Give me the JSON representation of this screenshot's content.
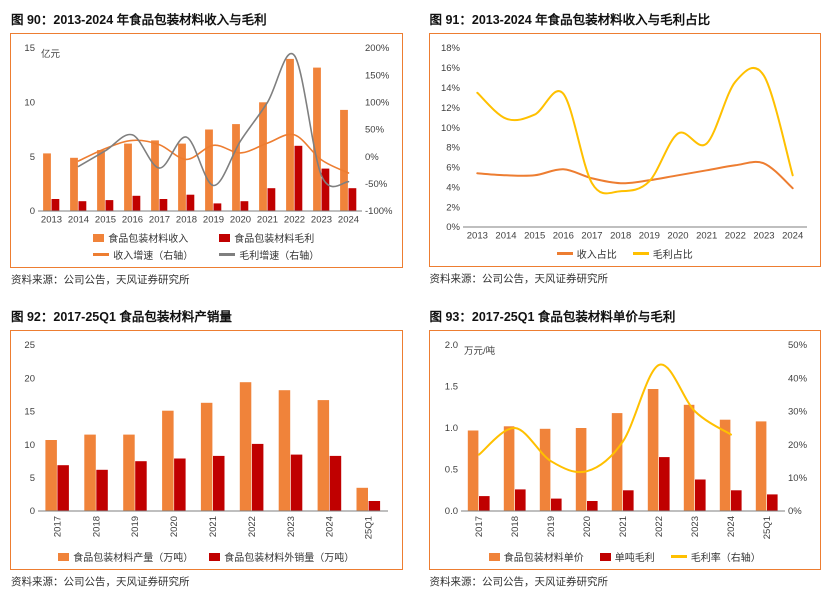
{
  "colors": {
    "bar_orange": "#F0833A",
    "bar_dark_red": "#C00000",
    "line_orange": "#ED7D31",
    "line_gray": "#7F7F7F",
    "line_yellow": "#FFC000",
    "panel_border": "#ED7D31"
  },
  "chart_data": [
    {
      "id": "fig90",
      "type": "bar+line",
      "title": "图 90：2013-2024 年食品包装材料收入与毛利",
      "source": "资料来源：公司公告，天风证券研究所",
      "unit_label": "亿元",
      "x_rotate": false,
      "legend_position": "bottom",
      "grid": false,
      "categories": [
        "2013",
        "2014",
        "2015",
        "2016",
        "2017",
        "2018",
        "2019",
        "2020",
        "2021",
        "2022",
        "2023",
        "2024"
      ],
      "bar_series": [
        {
          "name": "食品包装材料收入",
          "color": "#F0833A",
          "values": [
            5.3,
            4.9,
            5.6,
            6.2,
            6.5,
            6.2,
            7.5,
            8.0,
            10.0,
            14.0,
            13.2,
            9.3
          ]
        },
        {
          "name": "食品包装材料毛利",
          "color": "#C00000",
          "values": [
            1.1,
            0.9,
            1.0,
            1.4,
            1.1,
            1.5,
            0.7,
            0.9,
            2.1,
            6.0,
            3.9,
            2.1
          ]
        }
      ],
      "line_series": [
        {
          "name": "收入增速（右轴）",
          "color": "#ED7D31",
          "axis": "right",
          "width": 1.6,
          "values": [
            null,
            -8,
            15,
            30,
            22,
            -5,
            21,
            7,
            25,
            40,
            -6,
            -30
          ]
        },
        {
          "name": "毛利增速（右轴）",
          "color": "#7F7F7F",
          "axis": "right",
          "width": 1.6,
          "values": [
            null,
            -18,
            11,
            40,
            -21,
            36,
            -53,
            29,
            100,
            186,
            -35,
            -46
          ]
        }
      ],
      "left_axis": {
        "min": 0,
        "max": 15,
        "ticks": [
          0,
          5,
          10,
          15
        ]
      },
      "right_axis": {
        "min": -100,
        "max": 200,
        "ticks": [
          -100,
          -50,
          0,
          50,
          100,
          150,
          200
        ],
        "format": "pct"
      }
    },
    {
      "id": "fig91",
      "type": "line",
      "title": "图 91：2013-2024 年食品包装材料收入与毛利占比",
      "source": "资料来源：公司公告，天风证券研究所",
      "x_rotate": false,
      "legend_position": "bottom",
      "grid": false,
      "categories": [
        "2013",
        "2014",
        "2015",
        "2016",
        "2017",
        "2018",
        "2019",
        "2020",
        "2021",
        "2022",
        "2023",
        "2024"
      ],
      "line_series": [
        {
          "name": "收入占比",
          "color": "#ED7D31",
          "axis": "left",
          "width": 2,
          "values": [
            5.4,
            5.2,
            5.2,
            5.8,
            4.9,
            4.4,
            4.7,
            5.2,
            5.7,
            6.2,
            6.4,
            3.9
          ]
        },
        {
          "name": "毛利占比",
          "color": "#FFC000",
          "axis": "left",
          "width": 2,
          "values": [
            13.5,
            10.9,
            11.3,
            13.4,
            4.4,
            3.6,
            4.6,
            9.4,
            8.4,
            14.6,
            15.2,
            5.2
          ]
        }
      ],
      "left_axis": {
        "min": 0,
        "max": 18,
        "ticks": [
          0,
          2,
          4,
          6,
          8,
          10,
          12,
          14,
          16,
          18
        ],
        "format": "pct"
      }
    },
    {
      "id": "fig92",
      "type": "bar",
      "title": "图 92：2017-25Q1 食品包装材料产销量",
      "source": "资料来源：公司公告，天风证券研究所",
      "x_rotate": true,
      "legend_position": "bottom",
      "grid": false,
      "categories": [
        "2017",
        "2018",
        "2019",
        "2020",
        "2021",
        "2022",
        "2023",
        "2024",
        "25Q1"
      ],
      "bar_series": [
        {
          "name": "食品包装材料产量（万吨）",
          "color": "#F0833A",
          "values": [
            10.7,
            11.5,
            11.5,
            15.1,
            16.3,
            19.4,
            18.2,
            16.7,
            3.5
          ]
        },
        {
          "name": "食品包装材料外销量（万吨）",
          "color": "#C00000",
          "values": [
            6.9,
            6.2,
            7.5,
            7.9,
            8.3,
            10.1,
            8.5,
            8.3,
            1.5
          ]
        }
      ],
      "left_axis": {
        "min": 0,
        "max": 25,
        "ticks": [
          0,
          5,
          10,
          15,
          20,
          25
        ]
      }
    },
    {
      "id": "fig93",
      "type": "bar+line",
      "title": "图 93：2017-25Q1 食品包装材料单价与毛利",
      "source": "资料来源：公司公告，天风证券研究所",
      "unit_label": "万元/吨",
      "x_rotate": true,
      "legend_position": "bottom",
      "grid": false,
      "categories": [
        "2017",
        "2018",
        "2019",
        "2020",
        "2021",
        "2022",
        "2023",
        "2024",
        "25Q1"
      ],
      "bar_series": [
        {
          "name": "食品包装材料单价",
          "color": "#F0833A",
          "values": [
            0.97,
            1.02,
            0.99,
            1.0,
            1.18,
            1.47,
            1.28,
            1.1,
            1.08
          ]
        },
        {
          "name": "单吨毛利",
          "color": "#C00000",
          "values": [
            0.18,
            0.26,
            0.15,
            0.12,
            0.25,
            0.65,
            0.38,
            0.25,
            0.2
          ]
        }
      ],
      "line_series": [
        {
          "name": "毛利率（右轴）",
          "color": "#FFC000",
          "axis": "right",
          "width": 2,
          "values": [
            17,
            25,
            15,
            12,
            21,
            44,
            30,
            23,
            null
          ]
        }
      ],
      "left_axis": {
        "min": 0,
        "max": 2.0,
        "ticks": [
          0,
          0.5,
          1,
          1.5,
          2
        ],
        "decimals": 1
      },
      "right_axis": {
        "min": 0,
        "max": 50,
        "ticks": [
          0,
          10,
          20,
          30,
          40,
          50
        ],
        "format": "pct"
      }
    }
  ]
}
